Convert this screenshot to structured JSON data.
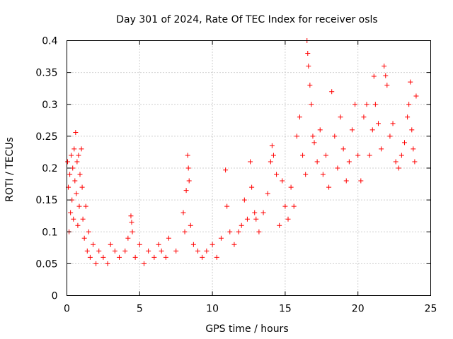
{
  "chart_data": {
    "type": "scatter",
    "title": "Day 301 of 2024, Rate Of TEC Index for receiver osls",
    "xlabel": "GPS time / hours",
    "ylabel": "ROTI / TECUs",
    "xlim": [
      0,
      25
    ],
    "ylim": [
      0,
      0.4
    ],
    "x_ticks": [
      0,
      5,
      10,
      15,
      20,
      25
    ],
    "x_tick_labels": [
      "0",
      "5",
      "10",
      "15",
      "20",
      "25"
    ],
    "y_ticks": [
      0,
      0.05,
      0.1,
      0.15,
      0.2,
      0.25,
      0.3,
      0.35,
      0.4
    ],
    "y_tick_labels": [
      "0",
      "0.05",
      "0.1",
      "0.15",
      "0.2",
      "0.25",
      "0.3",
      "0.35",
      "0.4"
    ],
    "grid": true,
    "marker": "+",
    "color": "#ff0000",
    "series": [
      {
        "name": "ROTI",
        "points": [
          [
            0.05,
            0.21
          ],
          [
            0.1,
            0.17
          ],
          [
            0.15,
            0.1
          ],
          [
            0.2,
            0.19
          ],
          [
            0.25,
            0.13
          ],
          [
            0.3,
            0.22
          ],
          [
            0.35,
            0.15
          ],
          [
            0.4,
            0.2
          ],
          [
            0.45,
            0.12
          ],
          [
            0.5,
            0.23
          ],
          [
            0.55,
            0.18
          ],
          [
            0.6,
            0.256
          ],
          [
            0.65,
            0.16
          ],
          [
            0.7,
            0.21
          ],
          [
            0.75,
            0.11
          ],
          [
            0.8,
            0.22
          ],
          [
            0.85,
            0.14
          ],
          [
            0.9,
            0.19
          ],
          [
            1.0,
            0.23
          ],
          [
            1.05,
            0.17
          ],
          [
            1.1,
            0.12
          ],
          [
            1.2,
            0.09
          ],
          [
            1.3,
            0.14
          ],
          [
            1.4,
            0.07
          ],
          [
            1.5,
            0.1
          ],
          [
            1.6,
            0.06
          ],
          [
            1.8,
            0.08
          ],
          [
            2.0,
            0.05
          ],
          [
            2.2,
            0.07
          ],
          [
            2.5,
            0.06
          ],
          [
            2.8,
            0.05
          ],
          [
            3.0,
            0.08
          ],
          [
            3.3,
            0.07
          ],
          [
            3.6,
            0.06
          ],
          [
            4.0,
            0.07
          ],
          [
            4.2,
            0.09
          ],
          [
            4.4,
            0.125
          ],
          [
            4.45,
            0.115
          ],
          [
            4.5,
            0.1
          ],
          [
            4.7,
            0.06
          ],
          [
            5.0,
            0.08
          ],
          [
            5.3,
            0.05
          ],
          [
            5.6,
            0.07
          ],
          [
            6.0,
            0.06
          ],
          [
            6.3,
            0.08
          ],
          [
            6.5,
            0.07
          ],
          [
            6.8,
            0.06
          ],
          [
            7.0,
            0.09
          ],
          [
            7.5,
            0.07
          ],
          [
            8.0,
            0.13
          ],
          [
            8.1,
            0.1
          ],
          [
            8.2,
            0.165
          ],
          [
            8.3,
            0.22
          ],
          [
            8.35,
            0.2
          ],
          [
            8.4,
            0.18
          ],
          [
            8.5,
            0.11
          ],
          [
            8.7,
            0.08
          ],
          [
            9.0,
            0.07
          ],
          [
            9.3,
            0.06
          ],
          [
            9.6,
            0.07
          ],
          [
            10.0,
            0.08
          ],
          [
            10.3,
            0.06
          ],
          [
            10.6,
            0.09
          ],
          [
            10.9,
            0.197
          ],
          [
            11.0,
            0.14
          ],
          [
            11.2,
            0.1
          ],
          [
            11.5,
            0.08
          ],
          [
            11.8,
            0.1
          ],
          [
            12.0,
            0.11
          ],
          [
            12.2,
            0.15
          ],
          [
            12.4,
            0.12
          ],
          [
            12.6,
            0.21
          ],
          [
            12.7,
            0.17
          ],
          [
            12.9,
            0.13
          ],
          [
            13.0,
            0.12
          ],
          [
            13.2,
            0.1
          ],
          [
            13.5,
            0.13
          ],
          [
            13.8,
            0.16
          ],
          [
            14.0,
            0.21
          ],
          [
            14.1,
            0.235
          ],
          [
            14.2,
            0.22
          ],
          [
            14.4,
            0.19
          ],
          [
            14.6,
            0.11
          ],
          [
            14.8,
            0.18
          ],
          [
            15.0,
            0.14
          ],
          [
            15.2,
            0.12
          ],
          [
            15.4,
            0.17
          ],
          [
            15.6,
            0.14
          ],
          [
            15.8,
            0.25
          ],
          [
            16.0,
            0.28
          ],
          [
            16.2,
            0.22
          ],
          [
            16.4,
            0.19
          ],
          [
            16.5,
            0.4
          ],
          [
            16.55,
            0.38
          ],
          [
            16.6,
            0.36
          ],
          [
            16.7,
            0.33
          ],
          [
            16.8,
            0.3
          ],
          [
            16.9,
            0.25
          ],
          [
            17.0,
            0.24
          ],
          [
            17.2,
            0.21
          ],
          [
            17.4,
            0.26
          ],
          [
            17.6,
            0.19
          ],
          [
            17.8,
            0.22
          ],
          [
            18.0,
            0.17
          ],
          [
            18.2,
            0.32
          ],
          [
            18.4,
            0.25
          ],
          [
            18.6,
            0.2
          ],
          [
            18.8,
            0.28
          ],
          [
            19.0,
            0.23
          ],
          [
            19.2,
            0.18
          ],
          [
            19.4,
            0.21
          ],
          [
            19.6,
            0.26
          ],
          [
            19.8,
            0.3
          ],
          [
            20.0,
            0.22
          ],
          [
            20.2,
            0.18
          ],
          [
            20.4,
            0.28
          ],
          [
            20.6,
            0.3
          ],
          [
            20.8,
            0.22
          ],
          [
            21.0,
            0.26
          ],
          [
            21.1,
            0.344
          ],
          [
            21.2,
            0.3
          ],
          [
            21.4,
            0.27
          ],
          [
            21.6,
            0.23
          ],
          [
            21.8,
            0.36
          ],
          [
            21.9,
            0.345
          ],
          [
            22.0,
            0.33
          ],
          [
            22.2,
            0.25
          ],
          [
            22.4,
            0.27
          ],
          [
            22.6,
            0.21
          ],
          [
            22.8,
            0.2
          ],
          [
            23.0,
            0.22
          ],
          [
            23.2,
            0.24
          ],
          [
            23.4,
            0.28
          ],
          [
            23.5,
            0.3
          ],
          [
            23.6,
            0.335
          ],
          [
            23.7,
            0.26
          ],
          [
            23.8,
            0.23
          ],
          [
            23.9,
            0.21
          ],
          [
            24.0,
            0.313
          ]
        ]
      }
    ]
  }
}
